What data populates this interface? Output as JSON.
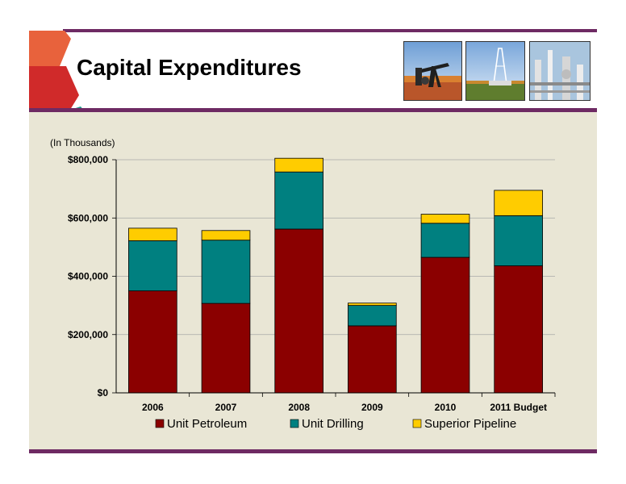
{
  "slide": {
    "title": "Capital Expenditures",
    "colors": {
      "brand_purple": "#6e2a63",
      "arrow_orange": "#e8623c",
      "arrow_red": "#d02a2a",
      "arrow_teal": "#1e9a8a",
      "panel_bg": "#e9e6d5"
    },
    "photos": [
      {
        "name": "pumpjack-photo"
      },
      {
        "name": "drilling-rig-photo"
      },
      {
        "name": "pipeline-plant-photo"
      }
    ]
  },
  "chart_data": {
    "type": "bar",
    "stacked": true,
    "unit_label": "(In Thousands)",
    "categories": [
      "2006",
      "2007",
      "2008",
      "2009",
      "2010",
      "2011 Budget"
    ],
    "series": [
      {
        "name": "Unit Petroleum",
        "color": "#8b0000",
        "values": [
          350000,
          307000,
          562000,
          230000,
          465000,
          436000
        ]
      },
      {
        "name": "Unit Drilling",
        "color": "#008080",
        "values": [
          172000,
          217000,
          196000,
          70000,
          117000,
          172000
        ]
      },
      {
        "name": "Superior Pipeline",
        "color": "#ffcc00",
        "values": [
          43000,
          33000,
          47000,
          8000,
          31000,
          87000
        ]
      }
    ],
    "ylim": [
      0,
      800000
    ],
    "yticks": [
      0,
      200000,
      400000,
      600000,
      800000
    ],
    "ytick_labels": [
      "$0",
      "$200,000",
      "$400,000",
      "$600,000",
      "$800,000"
    ],
    "grid": true,
    "legend_position": "bottom"
  }
}
